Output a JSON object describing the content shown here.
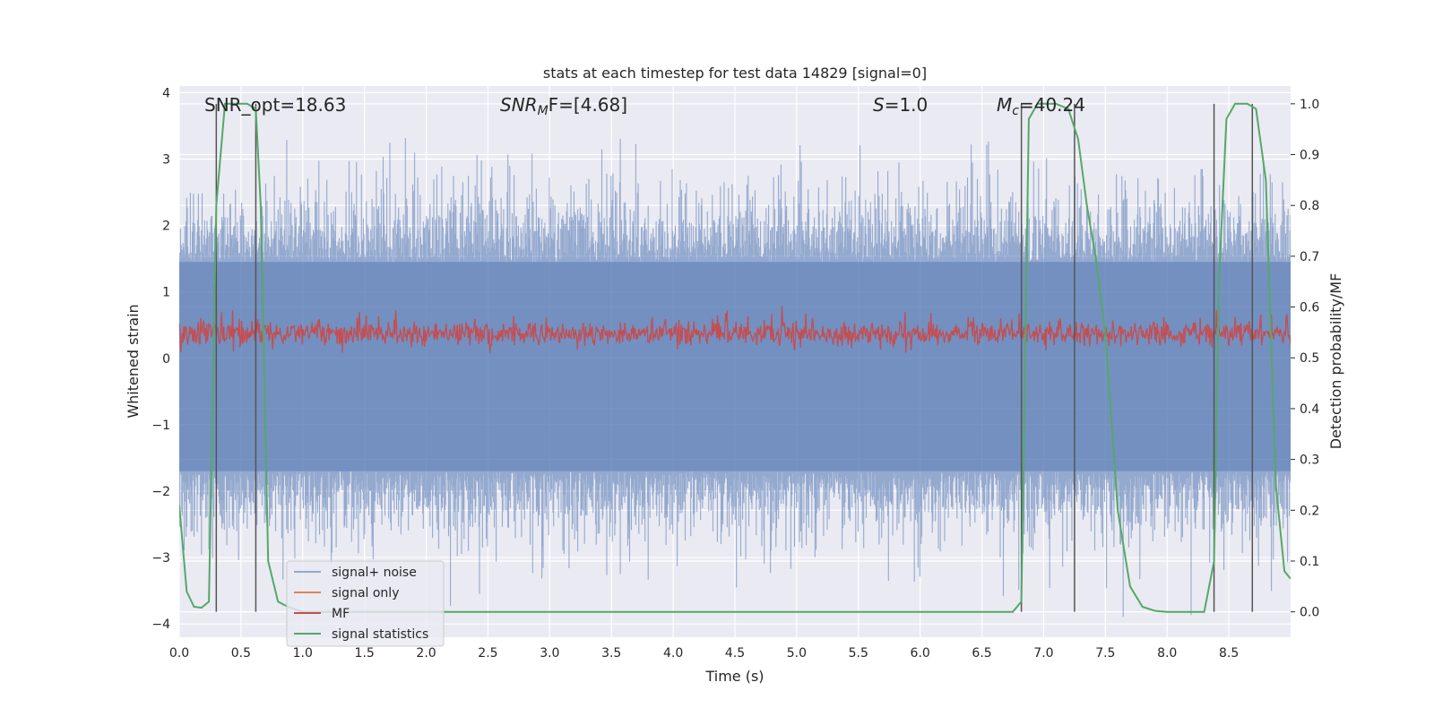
{
  "chart_data": {
    "type": "line",
    "title": "stats at each timestep for test data 14829 [signal=0]",
    "xlabel": "Time (s)",
    "ylabel": "Whitened strain",
    "y2label": "Detection probability/MF",
    "xlim": [
      0,
      9.0
    ],
    "ylim": [
      -4.2,
      4.1
    ],
    "y2lim": [
      -0.05,
      1.035
    ],
    "xticks": [
      "0.0",
      "0.5",
      "1.0",
      "1.5",
      "2.0",
      "2.5",
      "3.0",
      "3.5",
      "4.0",
      "4.5",
      "5.0",
      "5.5",
      "6.0",
      "6.5",
      "7.0",
      "7.5",
      "8.0",
      "8.5"
    ],
    "yticks": [
      "−4",
      "−3",
      "−2",
      "−1",
      "0",
      "1",
      "2",
      "3",
      "4"
    ],
    "y2ticks": [
      "0.0",
      "0.1",
      "0.2",
      "0.3",
      "0.4",
      "0.5",
      "0.6",
      "0.7",
      "0.8",
      "0.9",
      "1.0"
    ],
    "grid": true,
    "legend_position": "lower-left",
    "colors": {
      "background": "#eaeaf2",
      "signal_noise": "#4c72b0",
      "signal_only": "#dd8452",
      "mf": "#c44e52",
      "statistics": "#55a868",
      "vlines": "#555555"
    },
    "annotations": {
      "snr_opt": "SNR_opt=18.63",
      "snr_mf_base": "SNR",
      "snr_mf_sub": "M",
      "snr_mf_rest": "F=[4.68]",
      "s_var": "S",
      "s_rest": "=1.0",
      "mc_var": "M",
      "mc_sub": "c",
      "mc_rest": "=40.24"
    },
    "series": [
      {
        "name": "signal+ noise",
        "style": "noise band",
        "approx_range": [
          -2.8,
          3.3
        ],
        "core_range": [
          -1.7,
          1.45
        ]
      },
      {
        "name": "signal only",
        "values": []
      },
      {
        "name": "MF",
        "style": "noise band on right axis",
        "approx_range": [
          0.52,
          0.6
        ],
        "core_range": [
          0.525,
          0.575
        ]
      },
      {
        "name": "signal statistics",
        "x": [
          0.0,
          0.06,
          0.12,
          0.18,
          0.24,
          0.3,
          0.37,
          0.45,
          0.55,
          0.62,
          0.66,
          0.72,
          0.8,
          0.88,
          1.0,
          2.0,
          3.0,
          4.0,
          5.0,
          6.0,
          6.5,
          6.75,
          6.82,
          6.88,
          6.95,
          7.1,
          7.2,
          7.28,
          7.35,
          7.42,
          7.5,
          7.6,
          7.7,
          7.8,
          7.9,
          8.0,
          8.2,
          8.3,
          8.38,
          8.42,
          8.48,
          8.55,
          8.65,
          8.72,
          8.8,
          8.88,
          8.95,
          9.0
        ],
        "y": [
          0.21,
          0.04,
          0.01,
          0.008,
          0.02,
          0.8,
          1.0,
          1.0,
          1.0,
          0.99,
          0.8,
          0.1,
          0.02,
          0.01,
          0.0,
          0.0,
          0.0,
          0.0,
          0.0,
          0.0,
          0.0,
          0.0,
          0.02,
          0.97,
          1.0,
          1.0,
          0.99,
          0.93,
          0.8,
          0.7,
          0.55,
          0.2,
          0.05,
          0.01,
          0.002,
          0.0,
          0.0,
          0.0,
          0.1,
          0.65,
          0.97,
          1.0,
          1.0,
          0.99,
          0.85,
          0.25,
          0.08,
          0.065
        ]
      }
    ],
    "vertical_lines_x": [
      0.3,
      0.62,
      6.82,
      7.25,
      8.38,
      8.69
    ]
  }
}
